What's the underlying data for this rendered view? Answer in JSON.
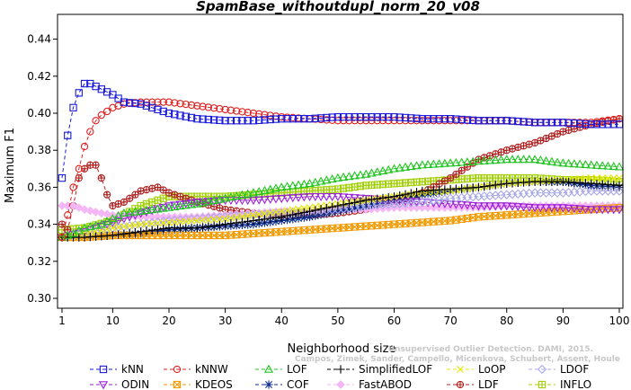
{
  "chart_data": {
    "type": "line",
    "title": "SpamBase_withoutdupl_norm_20_v08",
    "xlabel": "Neighborhood size",
    "ylabel": "Maximum F1",
    "xlim": [
      1,
      100
    ],
    "ylim": [
      0.3,
      0.45
    ],
    "x_ticks": [
      1,
      10,
      20,
      30,
      40,
      50,
      60,
      70,
      80,
      90,
      100
    ],
    "y_ticks": [
      0.3,
      0.32,
      0.34,
      0.36,
      0.38,
      0.4,
      0.42,
      0.44
    ],
    "y_tick_labels": [
      "0.30",
      "0.32",
      "0.34",
      "0.36",
      "0.38",
      "0.40",
      "0.42",
      "0.44"
    ],
    "grid": false,
    "legend_position": "bottom",
    "watermark": [
      "Unsupervised Outlier Detection. DAMI, 2015.",
      "Campos, Zimek, Sander, Campello, Micenkova, Schubert, Assent, Houle"
    ],
    "series": [
      {
        "name": "kNN",
        "color": "#1a1adc",
        "marker": "square",
        "points": [
          [
            1,
            0.365
          ],
          [
            2,
            0.388
          ],
          [
            3,
            0.403
          ],
          [
            4,
            0.411
          ],
          [
            5,
            0.416
          ],
          [
            6,
            0.416
          ],
          [
            8,
            0.413
          ],
          [
            10,
            0.41
          ],
          [
            12,
            0.406
          ],
          [
            15,
            0.405
          ],
          [
            18,
            0.402
          ],
          [
            20,
            0.4
          ],
          [
            25,
            0.397
          ],
          [
            30,
            0.396
          ],
          [
            35,
            0.396
          ],
          [
            40,
            0.397
          ],
          [
            45,
            0.397
          ],
          [
            50,
            0.398
          ],
          [
            55,
            0.398
          ],
          [
            60,
            0.398
          ],
          [
            65,
            0.397
          ],
          [
            70,
            0.397
          ],
          [
            75,
            0.396
          ],
          [
            80,
            0.396
          ],
          [
            85,
            0.395
          ],
          [
            90,
            0.395
          ],
          [
            95,
            0.394
          ],
          [
            100,
            0.394
          ]
        ]
      },
      {
        "name": "kNNW",
        "color": "#e02020",
        "marker": "circle",
        "points": [
          [
            1,
            0.333
          ],
          [
            2,
            0.345
          ],
          [
            3,
            0.36
          ],
          [
            4,
            0.37
          ],
          [
            5,
            0.382
          ],
          [
            6,
            0.39
          ],
          [
            7,
            0.396
          ],
          [
            8,
            0.399
          ],
          [
            10,
            0.403
          ],
          [
            12,
            0.405
          ],
          [
            15,
            0.406
          ],
          [
            18,
            0.406
          ],
          [
            20,
            0.406
          ],
          [
            25,
            0.404
          ],
          [
            30,
            0.402
          ],
          [
            35,
            0.4
          ],
          [
            40,
            0.398
          ],
          [
            45,
            0.397
          ],
          [
            50,
            0.396
          ],
          [
            55,
            0.396
          ],
          [
            60,
            0.396
          ],
          [
            65,
            0.396
          ],
          [
            70,
            0.396
          ],
          [
            75,
            0.396
          ],
          [
            80,
            0.396
          ],
          [
            85,
            0.395
          ],
          [
            90,
            0.395
          ],
          [
            95,
            0.395
          ],
          [
            100,
            0.397
          ]
        ]
      },
      {
        "name": "LOF",
        "color": "#22c422",
        "marker": "triangle",
        "points": [
          [
            1,
            0.333
          ],
          [
            3,
            0.335
          ],
          [
            5,
            0.338
          ],
          [
            8,
            0.34
          ],
          [
            10,
            0.343
          ],
          [
            12,
            0.346
          ],
          [
            15,
            0.347
          ],
          [
            20,
            0.349
          ],
          [
            25,
            0.351
          ],
          [
            30,
            0.354
          ],
          [
            35,
            0.357
          ],
          [
            40,
            0.36
          ],
          [
            45,
            0.362
          ],
          [
            50,
            0.365
          ],
          [
            55,
            0.367
          ],
          [
            60,
            0.37
          ],
          [
            65,
            0.372
          ],
          [
            70,
            0.373
          ],
          [
            75,
            0.374
          ],
          [
            80,
            0.375
          ],
          [
            85,
            0.375
          ],
          [
            90,
            0.373
          ],
          [
            95,
            0.372
          ],
          [
            100,
            0.371
          ]
        ]
      },
      {
        "name": "SimplifiedLOF",
        "color": "#000000",
        "marker": "plus",
        "points": [
          [
            1,
            0.333
          ],
          [
            5,
            0.333
          ],
          [
            10,
            0.334
          ],
          [
            15,
            0.336
          ],
          [
            20,
            0.338
          ],
          [
            25,
            0.338
          ],
          [
            30,
            0.34
          ],
          [
            35,
            0.342
          ],
          [
            40,
            0.344
          ],
          [
            45,
            0.347
          ],
          [
            50,
            0.35
          ],
          [
            55,
            0.353
          ],
          [
            60,
            0.355
          ],
          [
            65,
            0.358
          ],
          [
            70,
            0.359
          ],
          [
            75,
            0.36
          ],
          [
            80,
            0.362
          ],
          [
            85,
            0.363
          ],
          [
            90,
            0.363
          ],
          [
            95,
            0.362
          ],
          [
            100,
            0.361
          ]
        ]
      },
      {
        "name": "LoOP",
        "color": "#e6e600",
        "marker": "cross",
        "points": [
          [
            1,
            0.333
          ],
          [
            5,
            0.335
          ],
          [
            10,
            0.338
          ],
          [
            15,
            0.34
          ],
          [
            20,
            0.341
          ],
          [
            25,
            0.342
          ],
          [
            30,
            0.343
          ],
          [
            35,
            0.345
          ],
          [
            40,
            0.347
          ],
          [
            45,
            0.349
          ],
          [
            50,
            0.351
          ],
          [
            55,
            0.353
          ],
          [
            60,
            0.355
          ],
          [
            65,
            0.357
          ],
          [
            70,
            0.358
          ],
          [
            75,
            0.36
          ],
          [
            80,
            0.362
          ],
          [
            85,
            0.363
          ],
          [
            90,
            0.364
          ],
          [
            95,
            0.365
          ],
          [
            100,
            0.365
          ]
        ]
      },
      {
        "name": "LDOF",
        "color": "#a8a8e8",
        "marker": "diamond",
        "points": [
          [
            1,
            0.333
          ],
          [
            5,
            0.335
          ],
          [
            10,
            0.338
          ],
          [
            15,
            0.34
          ],
          [
            20,
            0.342
          ],
          [
            25,
            0.343
          ],
          [
            30,
            0.344
          ],
          [
            35,
            0.345
          ],
          [
            40,
            0.346
          ],
          [
            45,
            0.347
          ],
          [
            50,
            0.348
          ],
          [
            55,
            0.35
          ],
          [
            60,
            0.351
          ],
          [
            65,
            0.352
          ],
          [
            70,
            0.354
          ],
          [
            75,
            0.355
          ],
          [
            80,
            0.356
          ],
          [
            85,
            0.357
          ],
          [
            90,
            0.357
          ],
          [
            95,
            0.358
          ],
          [
            100,
            0.358
          ]
        ]
      },
      {
        "name": "ODIN",
        "color": "#9a22d8",
        "marker": "triangle-down",
        "points": [
          [
            1,
            0.333
          ],
          [
            5,
            0.336
          ],
          [
            10,
            0.341
          ],
          [
            15,
            0.346
          ],
          [
            20,
            0.35
          ],
          [
            25,
            0.352
          ],
          [
            30,
            0.353
          ],
          [
            35,
            0.353
          ],
          [
            40,
            0.354
          ],
          [
            45,
            0.355
          ],
          [
            50,
            0.355
          ],
          [
            55,
            0.354
          ],
          [
            60,
            0.353
          ],
          [
            65,
            0.352
          ],
          [
            70,
            0.351
          ],
          [
            75,
            0.35
          ],
          [
            80,
            0.35
          ],
          [
            85,
            0.349
          ],
          [
            90,
            0.349
          ],
          [
            95,
            0.348
          ],
          [
            100,
            0.348
          ]
        ]
      },
      {
        "name": "KDEOS",
        "color": "#f29a00",
        "marker": "box-x",
        "points": [
          [
            1,
            0.333
          ],
          [
            5,
            0.333
          ],
          [
            10,
            0.334
          ],
          [
            15,
            0.334
          ],
          [
            20,
            0.334
          ],
          [
            25,
            0.334
          ],
          [
            30,
            0.334
          ],
          [
            35,
            0.335
          ],
          [
            40,
            0.336
          ],
          [
            45,
            0.337
          ],
          [
            50,
            0.338
          ],
          [
            55,
            0.339
          ],
          [
            60,
            0.34
          ],
          [
            65,
            0.341
          ],
          [
            70,
            0.342
          ],
          [
            75,
            0.344
          ],
          [
            80,
            0.345
          ],
          [
            85,
            0.346
          ],
          [
            90,
            0.347
          ],
          [
            95,
            0.348
          ],
          [
            100,
            0.349
          ]
        ]
      },
      {
        "name": "COF",
        "color": "#0a2a8a",
        "marker": "star",
        "points": [
          [
            1,
            0.333
          ],
          [
            5,
            0.333
          ],
          [
            10,
            0.334
          ],
          [
            15,
            0.335
          ],
          [
            20,
            0.337
          ],
          [
            25,
            0.338
          ],
          [
            30,
            0.339
          ],
          [
            35,
            0.34
          ],
          [
            40,
            0.342
          ],
          [
            45,
            0.344
          ],
          [
            50,
            0.347
          ],
          [
            55,
            0.35
          ],
          [
            60,
            0.353
          ],
          [
            65,
            0.356
          ],
          [
            70,
            0.358
          ],
          [
            75,
            0.36
          ],
          [
            80,
            0.362
          ],
          [
            85,
            0.363
          ],
          [
            90,
            0.363
          ],
          [
            95,
            0.361
          ],
          [
            100,
            0.36
          ]
        ]
      },
      {
        "name": "FastABOD",
        "color": "#f5b6f5",
        "marker": "filled-diamond",
        "points": [
          [
            1,
            0.35
          ],
          [
            3,
            0.35
          ],
          [
            5,
            0.348
          ],
          [
            8,
            0.346
          ],
          [
            10,
            0.345
          ],
          [
            15,
            0.344
          ],
          [
            20,
            0.344
          ],
          [
            25,
            0.344
          ],
          [
            30,
            0.345
          ],
          [
            35,
            0.346
          ],
          [
            40,
            0.347
          ],
          [
            45,
            0.347
          ],
          [
            50,
            0.348
          ],
          [
            55,
            0.348
          ],
          [
            60,
            0.349
          ],
          [
            65,
            0.349
          ],
          [
            70,
            0.349
          ],
          [
            75,
            0.349
          ],
          [
            80,
            0.35
          ],
          [
            85,
            0.35
          ],
          [
            90,
            0.35
          ],
          [
            95,
            0.35
          ],
          [
            100,
            0.35
          ]
        ]
      },
      {
        "name": "LDF",
        "color": "#b02020",
        "marker": "circle-plus",
        "points": [
          [
            1,
            0.34
          ],
          [
            2,
            0.337
          ],
          [
            3,
            0.35
          ],
          [
            4,
            0.365
          ],
          [
            5,
            0.37
          ],
          [
            6,
            0.372
          ],
          [
            7,
            0.372
          ],
          [
            8,
            0.365
          ],
          [
            9,
            0.356
          ],
          [
            10,
            0.35
          ],
          [
            12,
            0.352
          ],
          [
            15,
            0.358
          ],
          [
            18,
            0.36
          ],
          [
            20,
            0.357
          ],
          [
            25,
            0.352
          ],
          [
            30,
            0.348
          ],
          [
            35,
            0.346
          ],
          [
            40,
            0.345
          ],
          [
            45,
            0.345
          ],
          [
            50,
            0.346
          ],
          [
            55,
            0.348
          ],
          [
            60,
            0.352
          ],
          [
            65,
            0.357
          ],
          [
            70,
            0.365
          ],
          [
            75,
            0.375
          ],
          [
            80,
            0.38
          ],
          [
            85,
            0.384
          ],
          [
            90,
            0.39
          ],
          [
            95,
            0.394
          ],
          [
            100,
            0.397
          ]
        ]
      },
      {
        "name": "INFLO",
        "color": "#a0d000",
        "marker": "box-plus",
        "points": [
          [
            1,
            0.337
          ],
          [
            5,
            0.338
          ],
          [
            10,
            0.342
          ],
          [
            15,
            0.35
          ],
          [
            20,
            0.355
          ],
          [
            25,
            0.355
          ],
          [
            30,
            0.355
          ],
          [
            35,
            0.356
          ],
          [
            40,
            0.357
          ],
          [
            45,
            0.358
          ],
          [
            50,
            0.359
          ],
          [
            55,
            0.361
          ],
          [
            60,
            0.362
          ],
          [
            65,
            0.363
          ],
          [
            70,
            0.364
          ],
          [
            75,
            0.365
          ],
          [
            80,
            0.365
          ],
          [
            85,
            0.365
          ],
          [
            90,
            0.364
          ],
          [
            95,
            0.364
          ],
          [
            100,
            0.363
          ]
        ]
      }
    ]
  }
}
